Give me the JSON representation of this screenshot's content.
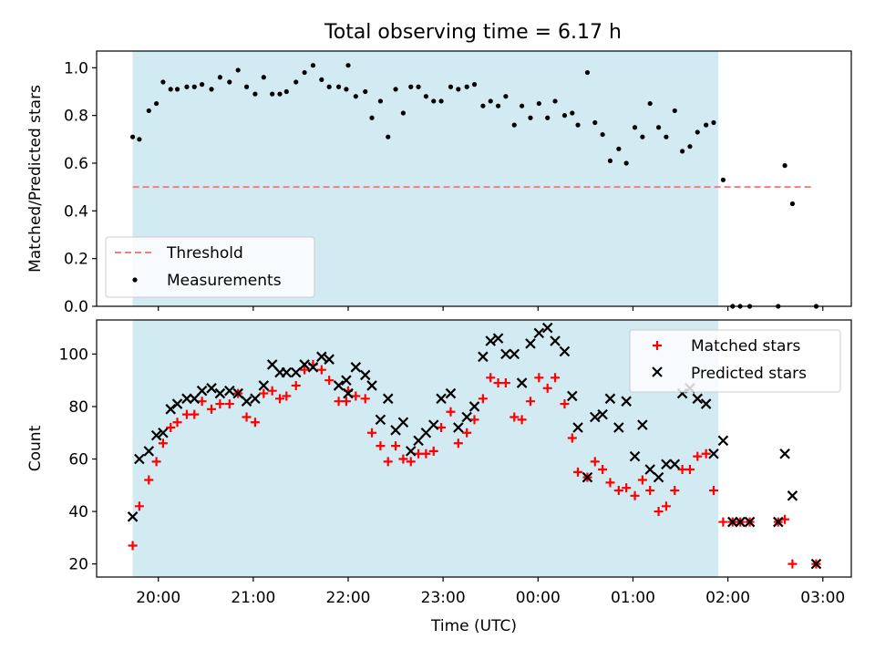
{
  "figure_title": "Total observing time = 6.17 h",
  "chart_data": [
    {
      "type": "scatter",
      "ylabel": "Matched/Predicted stars",
      "xlabel": "",
      "ylim": [
        0,
        1.07
      ],
      "yticks": [
        0.0,
        0.2,
        0.4,
        0.6,
        0.8,
        1.0
      ],
      "ytick_labels": [
        "0.0",
        "0.2",
        "0.4",
        "0.6",
        "0.8",
        "1.0"
      ],
      "xlim": [
        -0.65,
        7.3
      ],
      "observing_window": [
        -0.27,
        5.9
      ],
      "observing_window_color": "#add8e6",
      "threshold": {
        "name": "Threshold",
        "value": 0.5,
        "x": [
          -0.27,
          6.9
        ],
        "color": "#f08080",
        "style": "dashed"
      },
      "legend_position": "lower-left",
      "legend": [
        "Threshold",
        "Measurements"
      ],
      "series": [
        {
          "name": "Measurements",
          "color": "#000000",
          "points": [
            [
              -0.27,
              0.71
            ],
            [
              -0.2,
              0.7
            ],
            [
              -0.1,
              0.82
            ],
            [
              -0.02,
              0.85
            ],
            [
              0.05,
              0.94
            ],
            [
              0.13,
              0.91
            ],
            [
              0.2,
              0.91
            ],
            [
              0.3,
              0.92
            ],
            [
              0.38,
              0.92
            ],
            [
              0.46,
              0.93
            ],
            [
              0.56,
              0.91
            ],
            [
              0.65,
              0.96
            ],
            [
              0.75,
              0.94
            ],
            [
              0.84,
              0.99
            ],
            [
              0.93,
              0.92
            ],
            [
              1.02,
              0.89
            ],
            [
              1.11,
              0.96
            ],
            [
              1.2,
              0.89
            ],
            [
              1.28,
              0.89
            ],
            [
              1.35,
              0.9
            ],
            [
              1.45,
              0.94
            ],
            [
              1.54,
              0.98
            ],
            [
              1.63,
              1.01
            ],
            [
              1.72,
              0.95
            ],
            [
              1.8,
              0.92
            ],
            [
              1.9,
              0.92
            ],
            [
              1.98,
              0.91
            ],
            [
              2.0,
              1.01
            ],
            [
              2.08,
              0.88
            ],
            [
              2.18,
              0.9
            ],
            [
              2.25,
              0.79
            ],
            [
              2.34,
              0.86
            ],
            [
              2.42,
              0.71
            ],
            [
              2.5,
              0.91
            ],
            [
              2.58,
              0.81
            ],
            [
              2.66,
              0.92
            ],
            [
              2.74,
              0.92
            ],
            [
              2.82,
              0.88
            ],
            [
              2.9,
              0.86
            ],
            [
              2.98,
              0.86
            ],
            [
              3.08,
              0.92
            ],
            [
              3.16,
              0.91
            ],
            [
              3.25,
              0.92
            ],
            [
              3.33,
              0.93
            ],
            [
              3.42,
              0.84
            ],
            [
              3.5,
              0.86
            ],
            [
              3.58,
              0.84
            ],
            [
              3.66,
              0.88
            ],
            [
              3.75,
              0.76
            ],
            [
              3.83,
              0.84
            ],
            [
              3.92,
              0.79
            ],
            [
              4.01,
              0.85
            ],
            [
              4.1,
              0.79
            ],
            [
              4.18,
              0.86
            ],
            [
              4.28,
              0.8
            ],
            [
              4.36,
              0.81
            ],
            [
              4.42,
              0.76
            ],
            [
              4.52,
              0.98
            ],
            [
              4.6,
              0.77
            ],
            [
              4.68,
              0.72
            ],
            [
              4.76,
              0.61
            ],
            [
              4.85,
              0.66
            ],
            [
              4.93,
              0.6
            ],
            [
              5.02,
              0.75
            ],
            [
              5.1,
              0.71
            ],
            [
              5.18,
              0.85
            ],
            [
              5.27,
              0.75
            ],
            [
              5.35,
              0.71
            ],
            [
              5.44,
              0.82
            ],
            [
              5.52,
              0.65
            ],
            [
              5.6,
              0.67
            ],
            [
              5.68,
              0.73
            ],
            [
              5.77,
              0.76
            ],
            [
              5.85,
              0.77
            ],
            [
              5.95,
              0.53
            ],
            [
              6.05,
              0.0
            ],
            [
              6.13,
              0.0
            ],
            [
              6.23,
              0.0
            ],
            [
              6.53,
              0.0
            ],
            [
              6.6,
              0.59
            ],
            [
              6.68,
              0.43
            ],
            [
              6.93,
              0.0
            ]
          ]
        }
      ]
    },
    {
      "type": "scatter",
      "ylabel": "Count",
      "xlabel": "Time (UTC)",
      "ylim": [
        15,
        113
      ],
      "yticks": [
        20,
        40,
        60,
        80,
        100
      ],
      "ytick_labels": [
        "20",
        "40",
        "60",
        "80",
        "100"
      ],
      "xlim": [
        -0.65,
        7.3
      ],
      "xticks": [
        0,
        1,
        2,
        3,
        4,
        5,
        6,
        7
      ],
      "xtick_labels": [
        "20:00",
        "21:00",
        "22:00",
        "23:00",
        "00:00",
        "01:00",
        "02:00",
        "03:00"
      ],
      "observing_window": [
        -0.27,
        5.9
      ],
      "observing_window_color": "#add8e6",
      "legend_position": "upper-right",
      "legend": [
        "Matched stars",
        "Predicted stars"
      ],
      "series": [
        {
          "name": "Matched stars",
          "marker": "plus",
          "color": "#ff0000",
          "points": [
            [
              -0.27,
              27
            ],
            [
              -0.2,
              42
            ],
            [
              -0.1,
              52
            ],
            [
              -0.02,
              59
            ],
            [
              0.05,
              66
            ],
            [
              0.13,
              72
            ],
            [
              0.2,
              74
            ],
            [
              0.3,
              77
            ],
            [
              0.38,
              77
            ],
            [
              0.46,
              82
            ],
            [
              0.56,
              79
            ],
            [
              0.65,
              81
            ],
            [
              0.75,
              81
            ],
            [
              0.84,
              85
            ],
            [
              0.93,
              76
            ],
            [
              1.02,
              74
            ],
            [
              1.11,
              85
            ],
            [
              1.2,
              86
            ],
            [
              1.28,
              83
            ],
            [
              1.35,
              84
            ],
            [
              1.45,
              88
            ],
            [
              1.54,
              94
            ],
            [
              1.63,
              96
            ],
            [
              1.72,
              94
            ],
            [
              1.8,
              90
            ],
            [
              1.9,
              82
            ],
            [
              1.98,
              82
            ],
            [
              2.0,
              86
            ],
            [
              2.08,
              84
            ],
            [
              2.18,
              83
            ],
            [
              2.25,
              70
            ],
            [
              2.34,
              65
            ],
            [
              2.42,
              59
            ],
            [
              2.5,
              65
            ],
            [
              2.58,
              60
            ],
            [
              2.66,
              59
            ],
            [
              2.74,
              62
            ],
            [
              2.82,
              62
            ],
            [
              2.9,
              63
            ],
            [
              2.98,
              72
            ],
            [
              3.08,
              78
            ],
            [
              3.16,
              66
            ],
            [
              3.25,
              70
            ],
            [
              3.33,
              75
            ],
            [
              3.42,
              83
            ],
            [
              3.5,
              91
            ],
            [
              3.58,
              89
            ],
            [
              3.66,
              89
            ],
            [
              3.75,
              76
            ],
            [
              3.83,
              75
            ],
            [
              3.92,
              82
            ],
            [
              4.01,
              91
            ],
            [
              4.1,
              87
            ],
            [
              4.18,
              91
            ],
            [
              4.28,
              81
            ],
            [
              4.36,
              68
            ],
            [
              4.42,
              55
            ],
            [
              4.52,
              53
            ],
            [
              4.6,
              59
            ],
            [
              4.68,
              56
            ],
            [
              4.76,
              51
            ],
            [
              4.85,
              48
            ],
            [
              4.93,
              49
            ],
            [
              5.02,
              46
            ],
            [
              5.1,
              52
            ],
            [
              5.18,
              48
            ],
            [
              5.27,
              40
            ],
            [
              5.35,
              42
            ],
            [
              5.44,
              48
            ],
            [
              5.52,
              56
            ],
            [
              5.6,
              56
            ],
            [
              5.68,
              61
            ],
            [
              5.77,
              62
            ],
            [
              5.85,
              48
            ],
            [
              5.95,
              36
            ],
            [
              6.05,
              36
            ],
            [
              6.13,
              36
            ],
            [
              6.23,
              36
            ],
            [
              6.53,
              36
            ],
            [
              6.6,
              37
            ],
            [
              6.68,
              20
            ],
            [
              6.93,
              20
            ]
          ]
        },
        {
          "name": "Predicted stars",
          "marker": "x",
          "color": "#000000",
          "points": [
            [
              -0.27,
              38
            ],
            [
              -0.2,
              60
            ],
            [
              -0.1,
              63
            ],
            [
              -0.02,
              69
            ],
            [
              0.05,
              70
            ],
            [
              0.13,
              79
            ],
            [
              0.2,
              81
            ],
            [
              0.3,
              83
            ],
            [
              0.38,
              83
            ],
            [
              0.46,
              86
            ],
            [
              0.56,
              87
            ],
            [
              0.65,
              85
            ],
            [
              0.75,
              86
            ],
            [
              0.84,
              85
            ],
            [
              0.93,
              82
            ],
            [
              1.02,
              83
            ],
            [
              1.11,
              88
            ],
            [
              1.2,
              96
            ],
            [
              1.28,
              93
            ],
            [
              1.35,
              93
            ],
            [
              1.45,
              93
            ],
            [
              1.54,
              96
            ],
            [
              1.63,
              95
            ],
            [
              1.72,
              99
            ],
            [
              1.8,
              98
            ],
            [
              1.9,
              88
            ],
            [
              1.98,
              90
            ],
            [
              2.0,
              85
            ],
            [
              2.08,
              95
            ],
            [
              2.18,
              92
            ],
            [
              2.25,
              88
            ],
            [
              2.34,
              75
            ],
            [
              2.42,
              83
            ],
            [
              2.5,
              71
            ],
            [
              2.58,
              74
            ],
            [
              2.66,
              63
            ],
            [
              2.74,
              67
            ],
            [
              2.82,
              70
            ],
            [
              2.9,
              73
            ],
            [
              2.98,
              83
            ],
            [
              3.08,
              85
            ],
            [
              3.16,
              72
            ],
            [
              3.25,
              76
            ],
            [
              3.33,
              80
            ],
            [
              3.42,
              99
            ],
            [
              3.5,
              105
            ],
            [
              3.58,
              106
            ],
            [
              3.66,
              100
            ],
            [
              3.75,
              100
            ],
            [
              3.83,
              89
            ],
            [
              3.92,
              104
            ],
            [
              4.01,
              108
            ],
            [
              4.1,
              110
            ],
            [
              4.18,
              105
            ],
            [
              4.28,
              101
            ],
            [
              4.36,
              84
            ],
            [
              4.42,
              72
            ],
            [
              4.52,
              53
            ],
            [
              4.6,
              76
            ],
            [
              4.68,
              77
            ],
            [
              4.76,
              83
            ],
            [
              4.85,
              72
            ],
            [
              4.93,
              82
            ],
            [
              5.02,
              61
            ],
            [
              5.1,
              73
            ],
            [
              5.18,
              56
            ],
            [
              5.27,
              53
            ],
            [
              5.35,
              58
            ],
            [
              5.44,
              58
            ],
            [
              5.52,
              85
            ],
            [
              5.6,
              87
            ],
            [
              5.68,
              83
            ],
            [
              5.77,
              81
            ],
            [
              5.85,
              62
            ],
            [
              5.95,
              67
            ],
            [
              6.05,
              36
            ],
            [
              6.13,
              36
            ],
            [
              6.23,
              36
            ],
            [
              6.53,
              36
            ],
            [
              6.6,
              62
            ],
            [
              6.68,
              46
            ],
            [
              6.93,
              20
            ]
          ]
        }
      ]
    }
  ]
}
